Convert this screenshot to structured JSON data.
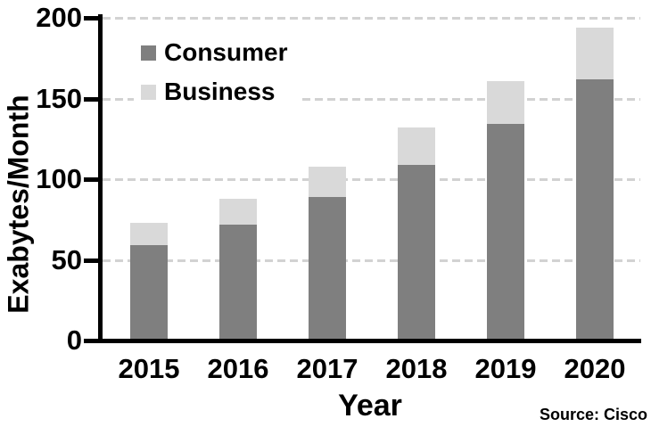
{
  "chart_data": {
    "type": "bar",
    "stacked": true,
    "categories": [
      "2015",
      "2016",
      "2017",
      "2018",
      "2019",
      "2020"
    ],
    "series": [
      {
        "name": "Consumer",
        "color": "#7f7f7f",
        "values": [
          59,
          72,
          89,
          109,
          134,
          162
        ]
      },
      {
        "name": "Business",
        "color": "#d9d9d9",
        "values": [
          14,
          16,
          19,
          23,
          27,
          32
        ]
      }
    ],
    "totals": [
      73,
      88,
      108,
      132,
      161,
      194
    ],
    "xlabel": "Year",
    "ylabel": "Exabytes/Month",
    "ylim": [
      0,
      200
    ],
    "yticks": [
      0,
      50,
      100,
      150,
      200
    ],
    "grid": "horizontal-dashed",
    "gridline_color": "#d2d2d2",
    "axis_color": "#000000",
    "background_color": "#ffffff",
    "legend_position": "top-left-inside",
    "source": "Source: Cisco"
  }
}
